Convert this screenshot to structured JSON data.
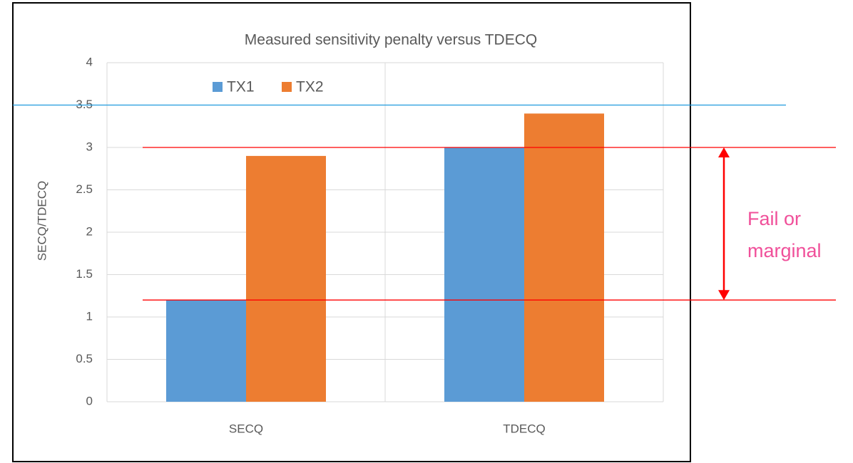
{
  "chart_data": {
    "type": "bar",
    "title": "Measured sensitivity penalty versus TDECQ",
    "y_label": "SECQ/TDECQ",
    "categories": [
      "SECQ",
      "TDECQ"
    ],
    "series": [
      {
        "name": "TX1",
        "color": "#5b9bd5",
        "values": [
          1.2,
          3.0
        ]
      },
      {
        "name": "TX2",
        "color": "#ed7d31",
        "values": [
          2.9,
          3.4
        ]
      }
    ],
    "ylim": [
      0,
      4
    ],
    "yticks": [
      0,
      0.5,
      1,
      1.5,
      2,
      2.5,
      3,
      3.5,
      4
    ],
    "grid": true,
    "legend": "top-left",
    "reference_lines": [
      {
        "value": 3.5,
        "color": "#1f9bde"
      },
      {
        "value": 3,
        "color": "#ff0000"
      },
      {
        "value": 1.2,
        "color": "#ff0000"
      }
    ],
    "annotation": {
      "lines": [
        "Fail or",
        "marginal"
      ],
      "color": "#f0509a"
    }
  }
}
